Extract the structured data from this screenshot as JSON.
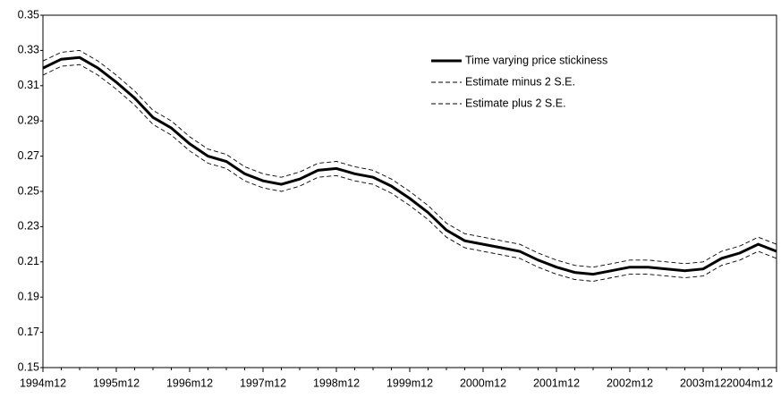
{
  "chart_data": {
    "type": "line",
    "categories": [
      "1994m12",
      null,
      null,
      null,
      "1995m12",
      null,
      null,
      null,
      "1996m12",
      null,
      null,
      null,
      "1997m12",
      null,
      null,
      null,
      "1998m12",
      null,
      null,
      null,
      "1999m12",
      null,
      null,
      null,
      "2000m12",
      null,
      null,
      null,
      "2001m12",
      null,
      null,
      null,
      "2002m12",
      null,
      null,
      null,
      "2003m12",
      null,
      null,
      null,
      "2004m12"
    ],
    "series": [
      {
        "name": "Time varying price stickiness",
        "color": "#000000",
        "dashed": false,
        "values": [
          0.32,
          0.325,
          0.326,
          0.32,
          0.312,
          0.303,
          0.292,
          0.286,
          0.277,
          0.27,
          0.267,
          0.26,
          0.256,
          0.254,
          0.257,
          0.262,
          0.263,
          0.26,
          0.258,
          0.253,
          0.246,
          0.238,
          0.228,
          0.222,
          0.22,
          0.218,
          0.216,
          0.211,
          0.207,
          0.204,
          0.203,
          0.205,
          0.207,
          0.207,
          0.206,
          0.205,
          0.206,
          0.212,
          0.215,
          0.22,
          0.216
        ]
      },
      {
        "name": "Estimate minus 2 S.E.",
        "color": "#000000",
        "dashed": true,
        "values": [
          0.316,
          0.321,
          0.322,
          0.316,
          0.308,
          0.299,
          0.288,
          0.282,
          0.273,
          0.266,
          0.263,
          0.256,
          0.252,
          0.25,
          0.253,
          0.258,
          0.259,
          0.256,
          0.254,
          0.249,
          0.242,
          0.234,
          0.224,
          0.218,
          0.216,
          0.214,
          0.212,
          0.207,
          0.203,
          0.2,
          0.199,
          0.201,
          0.203,
          0.203,
          0.202,
          0.201,
          0.202,
          0.208,
          0.211,
          0.216,
          0.212
        ]
      },
      {
        "name": "Estimate plus 2 S.E.",
        "color": "#000000",
        "dashed": true,
        "values": [
          0.324,
          0.329,
          0.33,
          0.324,
          0.316,
          0.307,
          0.296,
          0.29,
          0.281,
          0.274,
          0.271,
          0.264,
          0.26,
          0.258,
          0.261,
          0.266,
          0.267,
          0.264,
          0.262,
          0.257,
          0.25,
          0.242,
          0.232,
          0.226,
          0.224,
          0.222,
          0.22,
          0.215,
          0.211,
          0.208,
          0.207,
          0.209,
          0.211,
          0.211,
          0.21,
          0.209,
          0.21,
          0.216,
          0.219,
          0.224,
          0.22
        ]
      }
    ],
    "ylim": [
      0.15,
      0.35
    ],
    "yticks": [
      0.15,
      0.17,
      0.19,
      0.21,
      0.23,
      0.25,
      0.27,
      0.29,
      0.31,
      0.33,
      0.35
    ],
    "legend": "upper right",
    "grid": false
  }
}
